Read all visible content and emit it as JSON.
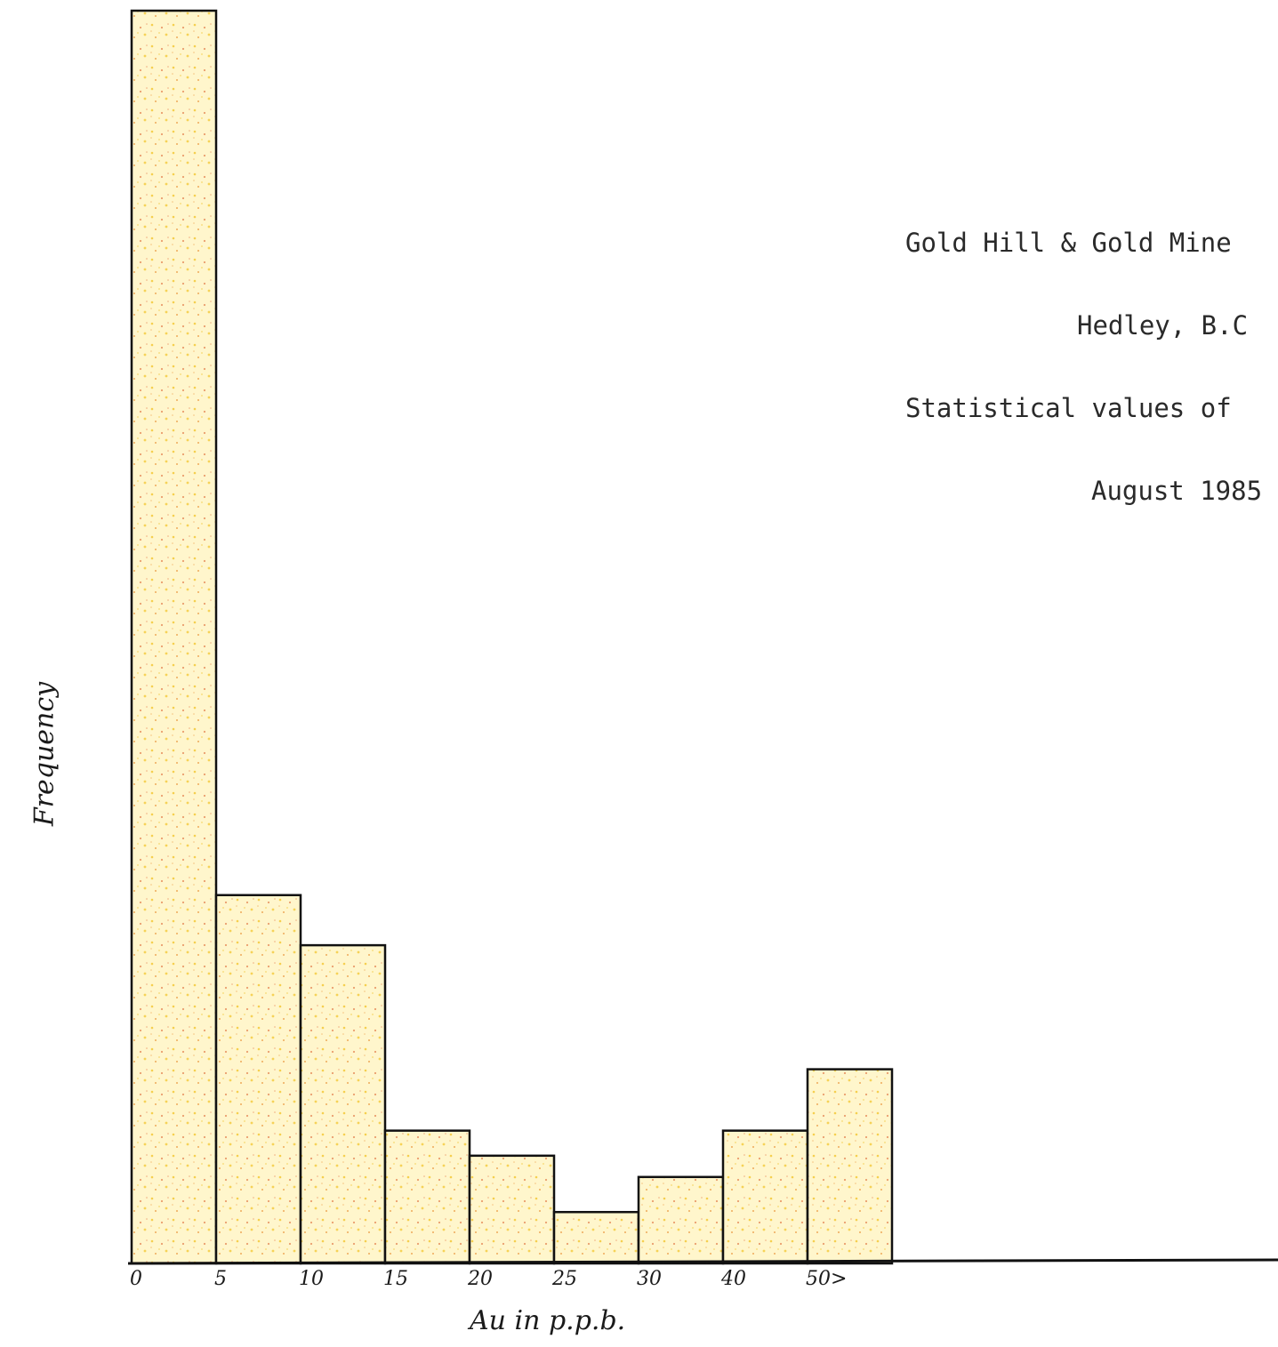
{
  "header": {
    "title_lines": [
      "Gold Hill & Gold Mine",
      "Hedley, B.C",
      "Statistical values of",
      "August 1985"
    ]
  },
  "colors": {
    "bar_fill": "#fff6cc",
    "bar_speckle_yellow": "#f2c530",
    "bar_speckle_red": "#d9531e",
    "bar_outline": "#111111",
    "axis": "#111111"
  },
  "chart_data": {
    "type": "bar",
    "title": "",
    "xlabel": "Au in p.p.b.",
    "ylabel": "Frequency",
    "tick_labels": [
      "0",
      "5",
      "10",
      "15",
      "20",
      "25",
      "30",
      "40",
      "50>"
    ],
    "bins": [
      {
        "from": "0",
        "to": "5"
      },
      {
        "from": "5",
        "to": "10"
      },
      {
        "from": "10",
        "to": "15"
      },
      {
        "from": "15",
        "to": "20"
      },
      {
        "from": "20",
        "to": "25"
      },
      {
        "from": "25",
        "to": "30"
      },
      {
        "from": "30",
        "to": "40"
      },
      {
        "from": "40",
        "to": "50"
      },
      {
        "from": "50>",
        "to": ""
      }
    ],
    "values": [
      100,
      29.4,
      25.4,
      10.6,
      8.6,
      4.1,
      6.9,
      10.6,
      15.5
    ],
    "ylim": [
      0,
      100
    ],
    "grid": false,
    "legend": "none",
    "note": "No numeric frequency scale is printed; values are relative heights with the first (clipped) bin set to 100."
  }
}
